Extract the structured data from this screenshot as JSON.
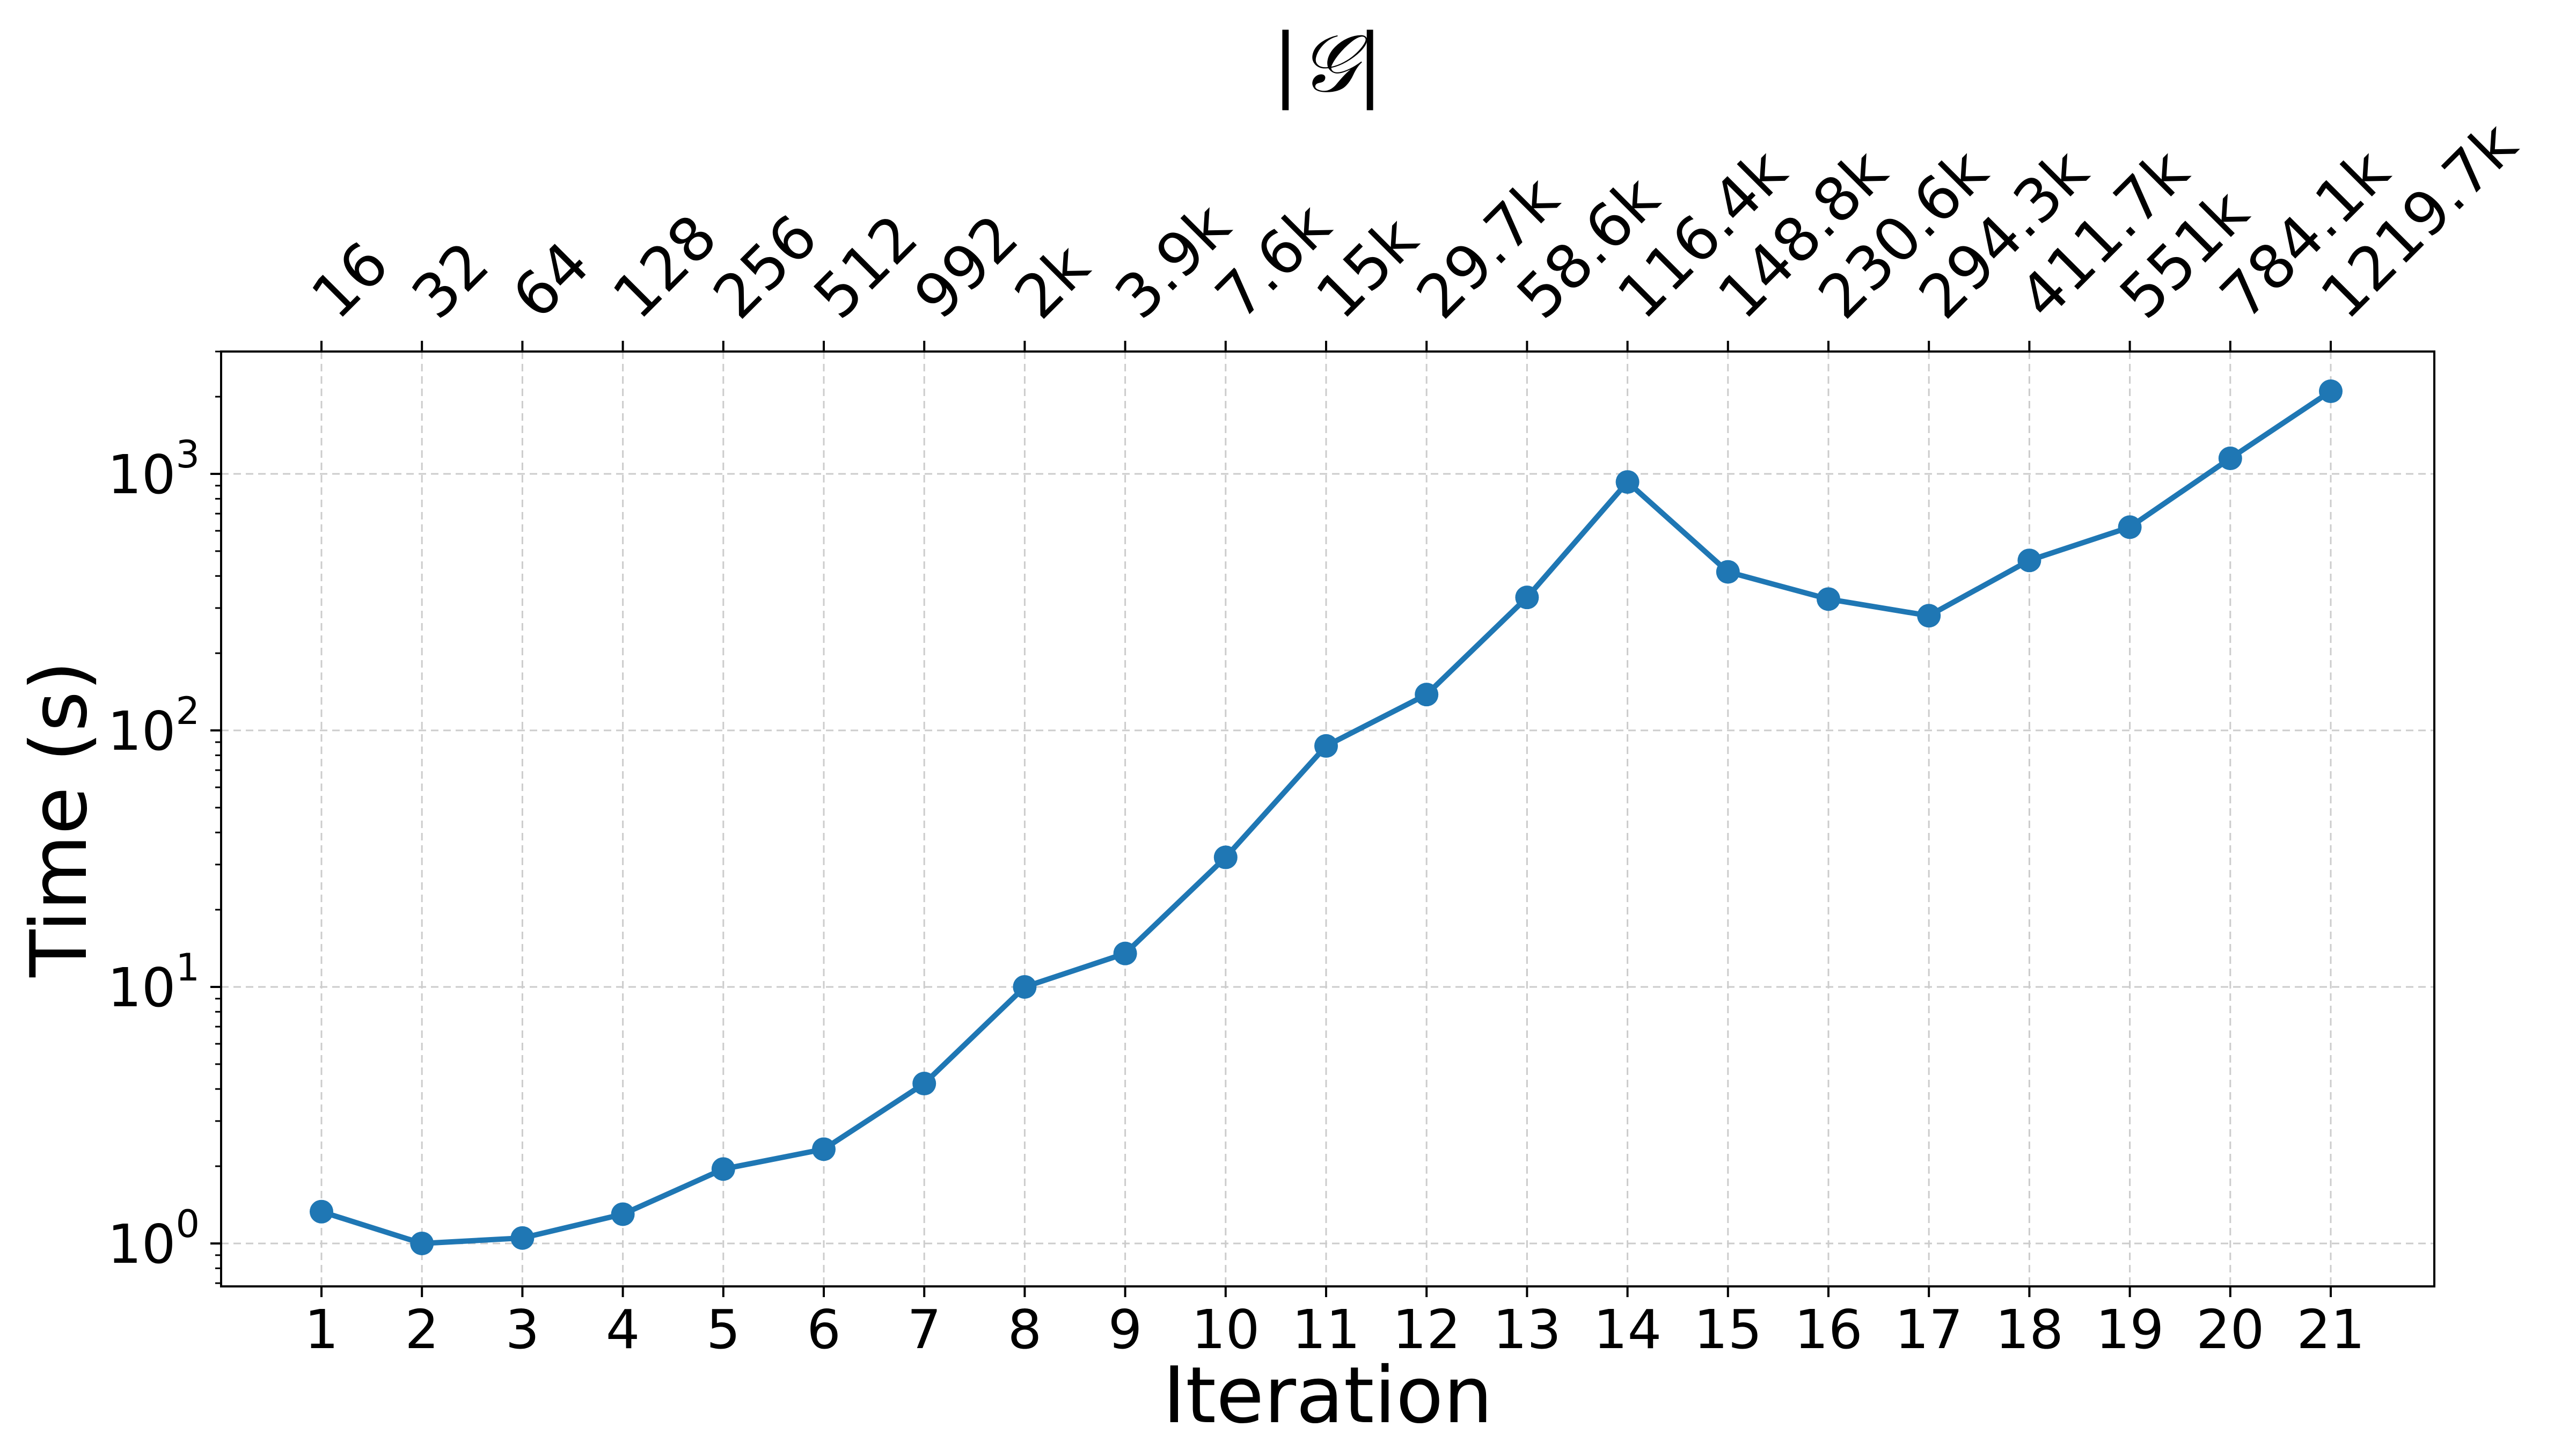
{
  "chart_data": {
    "type": "line",
    "title": "",
    "top_axis_label": "|𝒢|",
    "xlabel": "Iteration",
    "ylabel": "Time (s)",
    "yscale": "log",
    "grid": true,
    "x": [
      1,
      2,
      3,
      4,
      5,
      6,
      7,
      8,
      9,
      10,
      11,
      12,
      13,
      14,
      15,
      16,
      17,
      18,
      19,
      20,
      21
    ],
    "x_tick_labels": [
      "1",
      "2",
      "3",
      "4",
      "5",
      "6",
      "7",
      "8",
      "9",
      "10",
      "11",
      "12",
      "13",
      "14",
      "15",
      "16",
      "17",
      "18",
      "19",
      "20",
      "21"
    ],
    "top_tick_labels": [
      "16",
      "32",
      "64",
      "128",
      "256",
      "512",
      "992",
      "2k",
      "3.9k",
      "7.6k",
      "15k",
      "29.7k",
      "58.6k",
      "116.4k",
      "148.8k",
      "230.6k",
      "294.3k",
      "411.7k",
      "551k",
      "784.1k",
      "1219.7k"
    ],
    "y_ticks": [
      {
        "value": 1,
        "base": "10",
        "exp": "0"
      },
      {
        "value": 10,
        "base": "10",
        "exp": "1"
      },
      {
        "value": 100,
        "base": "10",
        "exp": "2"
      },
      {
        "value": 1000,
        "base": "10",
        "exp": "3"
      }
    ],
    "ylim": [
      0.68,
      3000
    ],
    "series": [
      {
        "color": "#1f77b4",
        "values": [
          1.33,
          1.0,
          1.05,
          1.3,
          1.95,
          2.33,
          4.2,
          10.0,
          13.5,
          32,
          87,
          138,
          330,
          930,
          415,
          325,
          280,
          460,
          620,
          1150,
          2100
        ]
      }
    ]
  }
}
